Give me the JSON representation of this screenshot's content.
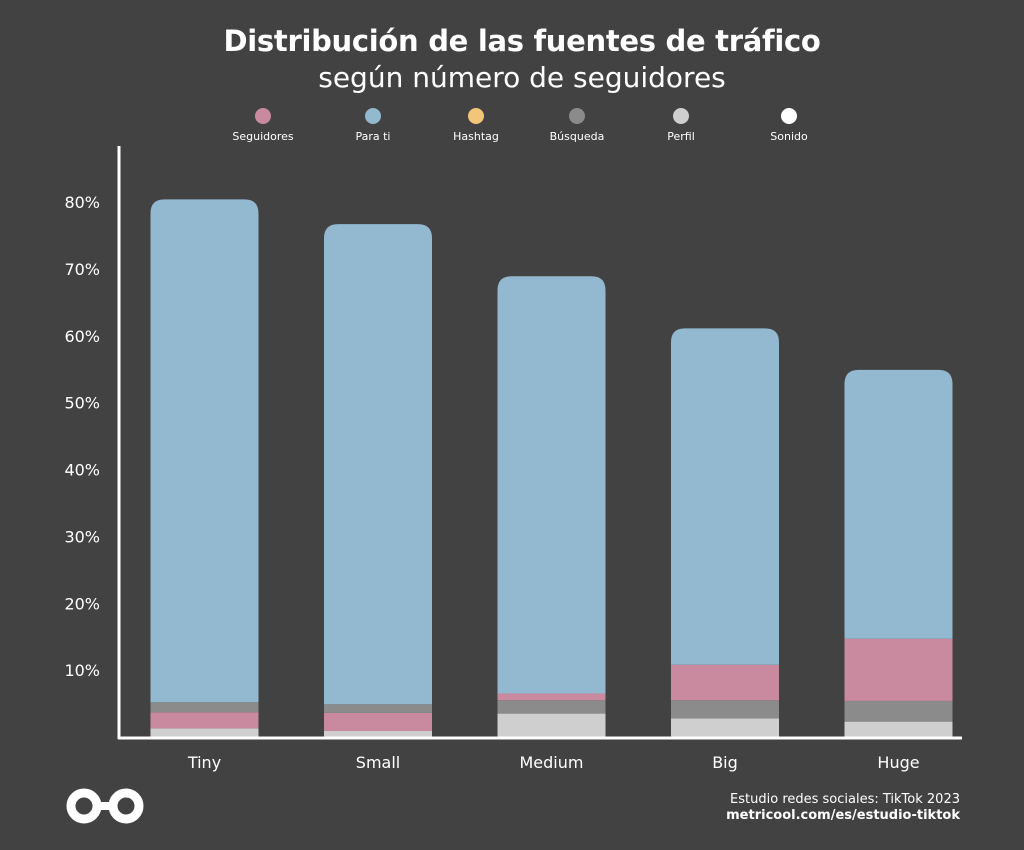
{
  "header": {
    "title": "Distribución de las fuentes de tráfico",
    "subtitle": "según número de seguidores"
  },
  "footer": {
    "source": "Estudio redes sociales: TikTok 2023",
    "url": "metricool.com/es/estudio-tiktok",
    "logo_icon": "metricool-infinity-logo-icon"
  },
  "chart_data": {
    "type": "bar",
    "stacked": true,
    "categories": [
      "Tiny",
      "Small",
      "Medium",
      "Big",
      "Huge"
    ],
    "ylim": [
      0,
      80
    ],
    "yticks": [
      "10%",
      "20%",
      "30%",
      "40%",
      "50%",
      "60%",
      "70%",
      "80%"
    ],
    "legend_position": "top",
    "grid": false,
    "series": [
      {
        "name": "Sonido",
        "color": "#ffffff",
        "values": [
          0,
          0,
          0,
          0,
          0
        ]
      },
      {
        "name": "Perfil",
        "color": "#cfcfcf",
        "values": [
          1.3,
          0.9,
          3.5,
          2.8,
          2.3
        ]
      },
      {
        "name": "Seguidores",
        "color": "#c98aa0",
        "values": [
          2.4,
          2.7,
          0,
          0,
          0
        ]
      },
      {
        "name": "Búsqueda",
        "color": "#8b8b8b",
        "values": [
          1.5,
          1.3,
          2.0,
          2.7,
          3.1
        ]
      },
      {
        "name": "Seguidores",
        "color": "#c98aa0",
        "values": [
          0,
          0,
          1.0,
          5.3,
          9.3
        ]
      },
      {
        "name": "Hashtag",
        "color": "#f2c679",
        "values": [
          0,
          0,
          0,
          0,
          0
        ]
      },
      {
        "name": "Para ti",
        "color": "#92b9cf",
        "values": [
          75.2,
          71.8,
          62.4,
          50.3,
          40.2
        ]
      }
    ],
    "legend": [
      {
        "name": "Seguidores",
        "color": "#c98aa0"
      },
      {
        "name": "Para ti",
        "color": "#92b9cf"
      },
      {
        "name": "Hashtag",
        "color": "#f2c679"
      },
      {
        "name": "Búsqueda",
        "color": "#8b8b8b"
      },
      {
        "name": "Perfil",
        "color": "#cfcfcf"
      },
      {
        "name": "Sonido",
        "color": "#ffffff"
      }
    ]
  }
}
